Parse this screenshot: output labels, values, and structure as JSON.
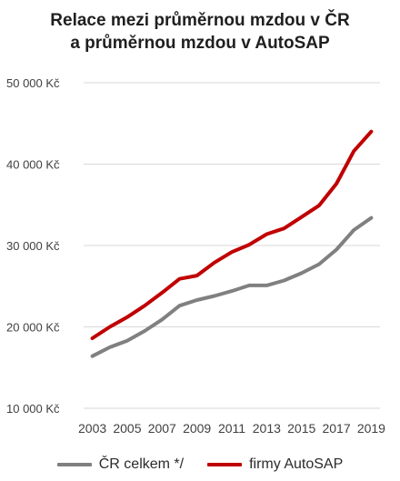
{
  "chart_data": {
    "type": "line",
    "title_lines": [
      "Relace mezi průměrnou mzdou v ČR",
      "a průměrnou mzdou v AutoSAP"
    ],
    "xlabel": "",
    "ylabel": "",
    "x": [
      2003,
      2004,
      2005,
      2006,
      2007,
      2008,
      2009,
      2010,
      2011,
      2012,
      2013,
      2014,
      2015,
      2016,
      2017,
      2018,
      2019
    ],
    "x_tick_labels": [
      "2003",
      "2005",
      "2007",
      "2009",
      "2011",
      "2013",
      "2015",
      "2017",
      "2019"
    ],
    "y_tick_values": [
      10000,
      20000,
      30000,
      40000,
      50000
    ],
    "y_tick_labels": [
      "10 000 Kč",
      "20 000 Kč",
      "30 000 Kč",
      "40 000 Kč",
      "50 000 Kč"
    ],
    "ylim": [
      10000,
      50000
    ],
    "grid": true,
    "legend_position": "bottom",
    "series": [
      {
        "name": "ČR celkem */",
        "color": "#808080",
        "values": [
          16400,
          17500,
          18300,
          19500,
          20900,
          22600,
          23300,
          23800,
          24400,
          25100,
          25100,
          25700,
          26600,
          27700,
          29500,
          31900,
          33400
        ]
      },
      {
        "name": "firmy AutoSAP",
        "color": "#c00000",
        "values": [
          18600,
          20000,
          21200,
          22600,
          24200,
          25900,
          26300,
          27900,
          29200,
          30100,
          31400,
          32100,
          33500,
          34900,
          37600,
          41600,
          44000
        ]
      }
    ]
  }
}
